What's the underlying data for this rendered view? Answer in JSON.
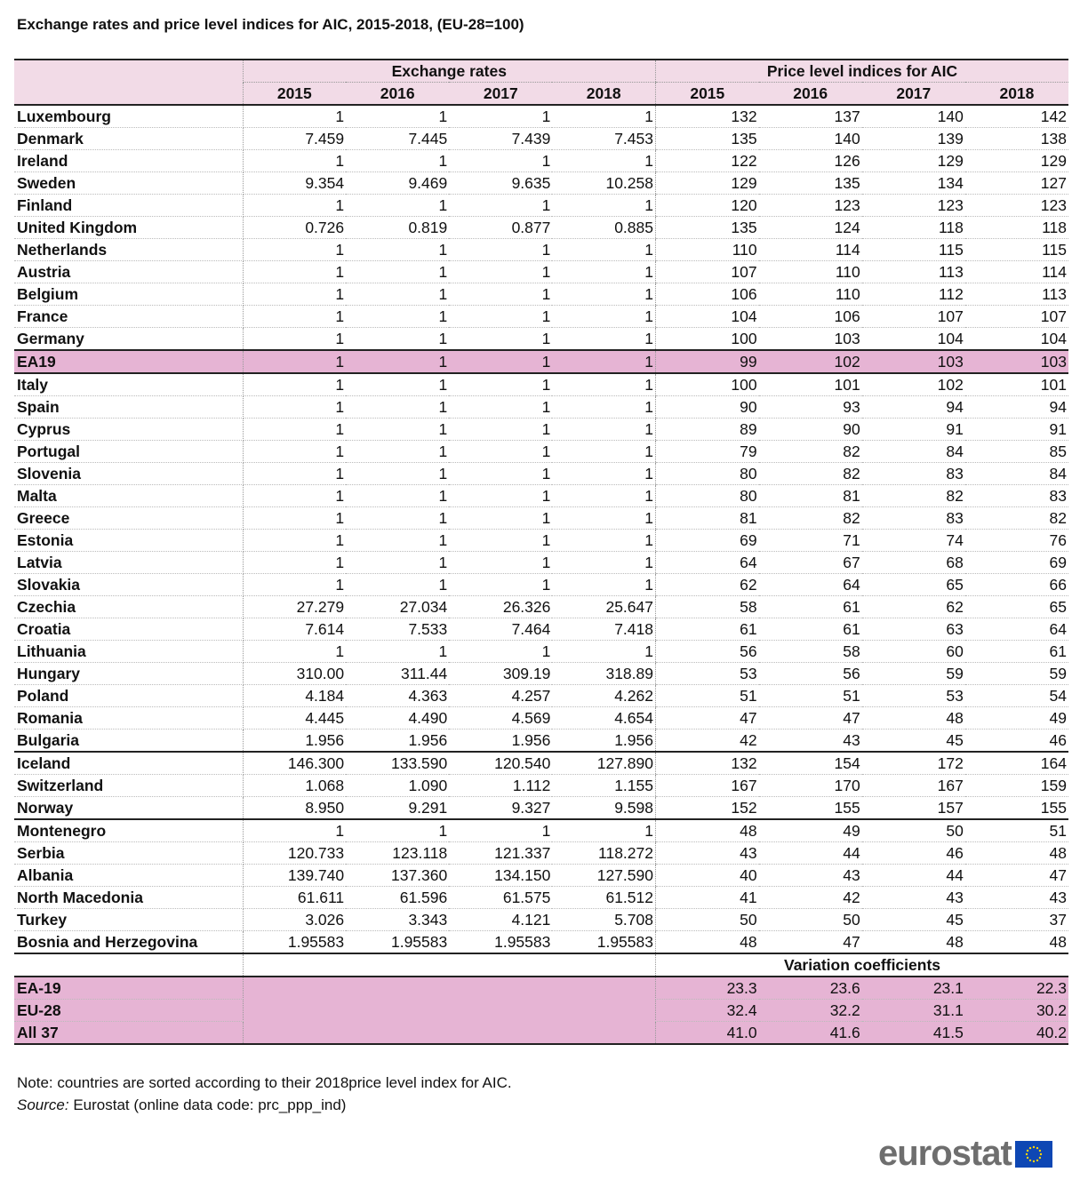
{
  "title": "Exchange rates and price level indices for AIC, 2015-2018, (EU-28=100)",
  "chart_data": {
    "type": "table",
    "group_headers": [
      "Exchange rates",
      "Price level indices for AIC"
    ],
    "years": [
      "2015",
      "2016",
      "2017",
      "2018"
    ],
    "rows": [
      [
        "Luxembourg",
        "1",
        "1",
        "1",
        "1",
        "132",
        "137",
        "140",
        "142"
      ],
      [
        "Denmark",
        "7.459",
        "7.445",
        "7.439",
        "7.453",
        "135",
        "140",
        "139",
        "138"
      ],
      [
        "Ireland",
        "1",
        "1",
        "1",
        "1",
        "122",
        "126",
        "129",
        "129"
      ],
      [
        "Sweden",
        "9.354",
        "9.469",
        "9.635",
        "10.258",
        "129",
        "135",
        "134",
        "127"
      ],
      [
        "Finland",
        "1",
        "1",
        "1",
        "1",
        "120",
        "123",
        "123",
        "123"
      ],
      [
        "United Kingdom",
        "0.726",
        "0.819",
        "0.877",
        "0.885",
        "135",
        "124",
        "118",
        "118"
      ],
      [
        "Netherlands",
        "1",
        "1",
        "1",
        "1",
        "110",
        "114",
        "115",
        "115"
      ],
      [
        "Austria",
        "1",
        "1",
        "1",
        "1",
        "107",
        "110",
        "113",
        "114"
      ],
      [
        "Belgium",
        "1",
        "1",
        "1",
        "1",
        "106",
        "110",
        "112",
        "113"
      ],
      [
        "France",
        "1",
        "1",
        "1",
        "1",
        "104",
        "106",
        "107",
        "107"
      ],
      [
        "Germany",
        "1",
        "1",
        "1",
        "1",
        "100",
        "103",
        "104",
        "104"
      ],
      [
        "EA19",
        "1",
        "1",
        "1",
        "1",
        "99",
        "102",
        "103",
        "103"
      ],
      [
        "Italy",
        "1",
        "1",
        "1",
        "1",
        "100",
        "101",
        "102",
        "101"
      ],
      [
        "Spain",
        "1",
        "1",
        "1",
        "1",
        "90",
        "93",
        "94",
        "94"
      ],
      [
        "Cyprus",
        "1",
        "1",
        "1",
        "1",
        "89",
        "90",
        "91",
        "91"
      ],
      [
        "Portugal",
        "1",
        "1",
        "1",
        "1",
        "79",
        "82",
        "84",
        "85"
      ],
      [
        "Slovenia",
        "1",
        "1",
        "1",
        "1",
        "80",
        "82",
        "83",
        "84"
      ],
      [
        "Malta",
        "1",
        "1",
        "1",
        "1",
        "80",
        "81",
        "82",
        "83"
      ],
      [
        "Greece",
        "1",
        "1",
        "1",
        "1",
        "81",
        "82",
        "83",
        "82"
      ],
      [
        "Estonia",
        "1",
        "1",
        "1",
        "1",
        "69",
        "71",
        "74",
        "76"
      ],
      [
        "Latvia",
        "1",
        "1",
        "1",
        "1",
        "64",
        "67",
        "68",
        "69"
      ],
      [
        "Slovakia",
        "1",
        "1",
        "1",
        "1",
        "62",
        "64",
        "65",
        "66"
      ],
      [
        "Czechia",
        "27.279",
        "27.034",
        "26.326",
        "25.647",
        "58",
        "61",
        "62",
        "65"
      ],
      [
        "Croatia",
        "7.614",
        "7.533",
        "7.464",
        "7.418",
        "61",
        "61",
        "63",
        "64"
      ],
      [
        "Lithuania",
        "1",
        "1",
        "1",
        "1",
        "56",
        "58",
        "60",
        "61"
      ],
      [
        "Hungary",
        "310.00",
        "311.44",
        "309.19",
        "318.89",
        "53",
        "56",
        "59",
        "59"
      ],
      [
        "Poland",
        "4.184",
        "4.363",
        "4.257",
        "4.262",
        "51",
        "51",
        "53",
        "54"
      ],
      [
        "Romania",
        "4.445",
        "4.490",
        "4.569",
        "4.654",
        "47",
        "47",
        "48",
        "49"
      ],
      [
        "Bulgaria",
        "1.956",
        "1.956",
        "1.956",
        "1.956",
        "42",
        "43",
        "45",
        "46"
      ],
      [
        "Iceland",
        "146.300",
        "133.590",
        "120.540",
        "127.890",
        "132",
        "154",
        "172",
        "164"
      ],
      [
        "Switzerland",
        "1.068",
        "1.090",
        "1.112",
        "1.155",
        "167",
        "170",
        "167",
        "159"
      ],
      [
        "Norway",
        "8.950",
        "9.291",
        "9.327",
        "9.598",
        "152",
        "155",
        "157",
        "155"
      ],
      [
        "Montenegro",
        "1",
        "1",
        "1",
        "1",
        "48",
        "49",
        "50",
        "51"
      ],
      [
        "Serbia",
        "120.733",
        "123.118",
        "121.337",
        "118.272",
        "43",
        "44",
        "46",
        "48"
      ],
      [
        "Albania",
        "139.740",
        "137.360",
        "134.150",
        "127.590",
        "40",
        "43",
        "44",
        "47"
      ],
      [
        "North Macedonia",
        "61.611",
        "61.596",
        "61.575",
        "61.512",
        "41",
        "42",
        "43",
        "43"
      ],
      [
        "Turkey",
        "3.026",
        "3.343",
        "4.121",
        "5.708",
        "50",
        "50",
        "45",
        "37"
      ],
      [
        "Bosnia and Herzegovina",
        "1.95583",
        "1.95583",
        "1.95583",
        "1.95583",
        "48",
        "47",
        "48",
        "48"
      ]
    ],
    "variation_label": "Variation coefficients",
    "variation_rows": [
      [
        "EA-19",
        "23.3",
        "23.6",
        "23.1",
        "22.3"
      ],
      [
        "EU-28",
        "32.4",
        "32.2",
        "31.1",
        "30.2"
      ],
      [
        "All 37",
        "41.0",
        "41.6",
        "41.5",
        "40.2"
      ]
    ],
    "highlight_color": "#e6b4d4",
    "header_color": "#f2dbe7"
  },
  "notes": {
    "note": "Note: countries are sorted according to their 2018price level index for AIC.",
    "source_label": "Source:",
    "source_text": " Eurostat (online data code: prc_ppp_ind)"
  },
  "logo": {
    "text": "eurostat",
    "icon": "eu-flag-icon"
  }
}
